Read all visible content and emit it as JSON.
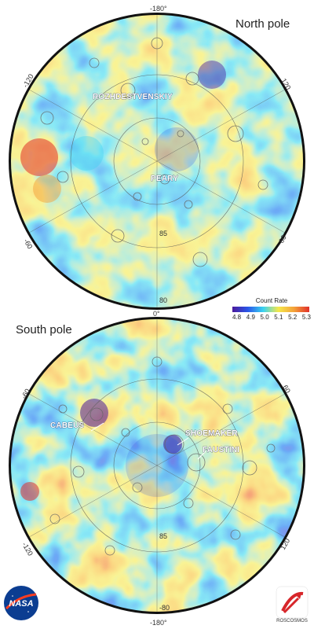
{
  "panels": {
    "north": {
      "title": "North pole",
      "lon_labels": {
        "top": "-180°",
        "left": "-120",
        "right": "120",
        "bottom_left": "-60",
        "bottom_right": "60"
      },
      "lat_labels": [
        "85",
        "80"
      ],
      "craters": [
        "ROZHDESTVENSKIY",
        "PEARY"
      ]
    },
    "south": {
      "title": "South pole",
      "lon_labels": {
        "top": "0°",
        "left": "-60",
        "right": "60",
        "bottom_left": "-120",
        "bottom_right": "120",
        "bottom": "-180°"
      },
      "lat_labels": [
        "85",
        "-80"
      ],
      "craters": [
        "CABEUS",
        "SHOEMAKER",
        "FAUSTINI"
      ]
    }
  },
  "legend": {
    "title": "Count Rate",
    "ticks": [
      "4.8",
      "4.9",
      "5.0",
      "5.1",
      "5.2",
      "5.3"
    ],
    "colors": [
      "#4a1a9c",
      "#2a56e8",
      "#3ad2f0",
      "#f5e84a",
      "#f4a23a",
      "#e0302a"
    ]
  },
  "logos": {
    "nasa": "NASA",
    "roscosmos": "ROSCOSMOS"
  }
}
